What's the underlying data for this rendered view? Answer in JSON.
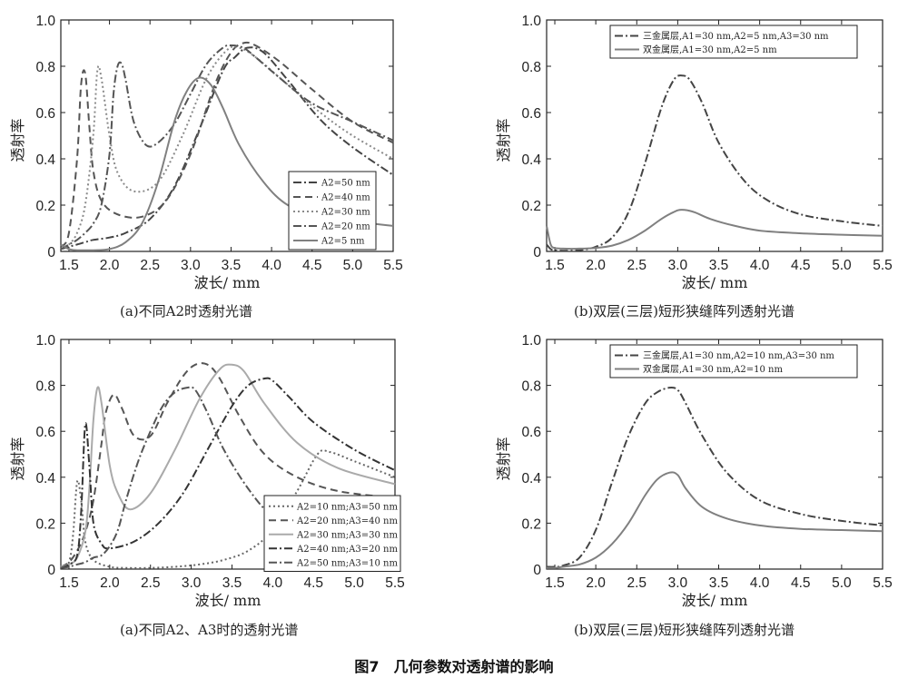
{
  "figure_title": "图7　几何参数对透射谱的影响",
  "chart_data": [
    {
      "type": "line",
      "caption": "(a)不同A2时透射光谱",
      "xlabel": "波长/ mm",
      "ylabel": "透射率",
      "xlim": [
        1.4,
        5.5
      ],
      "ylim": [
        0,
        1.0
      ],
      "xticks": [
        "1.5",
        "2.0",
        "2.5",
        "3.0",
        "3.5",
        "4.0",
        "4.5",
        "5.0",
        "5.5"
      ],
      "yticks": [
        "0",
        "0.2",
        "0.4",
        "0.6",
        "0.8",
        "1.0"
      ],
      "legend_position": "right-middle",
      "series": [
        {
          "name": "A2=50 nm",
          "style": "dashdot",
          "color": "#444444",
          "x": [
            1.4,
            1.5,
            1.6,
            1.7,
            1.8,
            2.0,
            2.2,
            2.5,
            2.8,
            3.1,
            3.4,
            3.55,
            3.7,
            3.9,
            4.2,
            4.6,
            5.0,
            5.5
          ],
          "y": [
            0.01,
            0.02,
            0.03,
            0.04,
            0.05,
            0.06,
            0.08,
            0.14,
            0.28,
            0.52,
            0.78,
            0.84,
            0.88,
            0.86,
            0.74,
            0.57,
            0.45,
            0.33
          ]
        },
        {
          "name": "A2=40 nm",
          "style": "dashed",
          "color": "#555555",
          "x": [
            1.4,
            1.5,
            1.6,
            1.65,
            1.7,
            1.75,
            1.8,
            1.9,
            2.1,
            2.4,
            2.7,
            3.0,
            3.3,
            3.5,
            3.65,
            3.8,
            4.1,
            4.5,
            5.0,
            5.5
          ],
          "y": [
            0.02,
            0.08,
            0.4,
            0.72,
            0.77,
            0.55,
            0.35,
            0.22,
            0.16,
            0.15,
            0.22,
            0.42,
            0.72,
            0.86,
            0.9,
            0.89,
            0.82,
            0.7,
            0.56,
            0.47
          ]
        },
        {
          "name": "A2=30 nm",
          "style": "dotted",
          "color": "#8a8a8a",
          "x": [
            1.4,
            1.5,
            1.6,
            1.7,
            1.8,
            1.85,
            1.9,
            2.0,
            2.1,
            2.3,
            2.6,
            2.9,
            3.2,
            3.45,
            3.6,
            3.8,
            4.2,
            4.6,
            5.0,
            5.5
          ],
          "y": [
            0.01,
            0.03,
            0.08,
            0.2,
            0.5,
            0.78,
            0.75,
            0.5,
            0.34,
            0.26,
            0.3,
            0.5,
            0.75,
            0.87,
            0.88,
            0.84,
            0.72,
            0.6,
            0.5,
            0.4
          ]
        },
        {
          "name": "A2=20 nm",
          "style": "dashdot",
          "color": "#555555",
          "x": [
            1.4,
            1.5,
            1.6,
            1.7,
            1.8,
            1.9,
            2.0,
            2.05,
            2.1,
            2.15,
            2.2,
            2.3,
            2.45,
            2.6,
            2.8,
            3.0,
            3.2,
            3.4,
            3.5,
            3.65,
            3.8,
            4.1,
            4.5,
            5.0,
            5.5
          ],
          "y": [
            0.01,
            0.03,
            0.05,
            0.08,
            0.12,
            0.2,
            0.42,
            0.68,
            0.8,
            0.81,
            0.74,
            0.56,
            0.46,
            0.47,
            0.55,
            0.68,
            0.81,
            0.88,
            0.89,
            0.88,
            0.84,
            0.75,
            0.64,
            0.56,
            0.48
          ]
        },
        {
          "name": "A2=5 nm",
          "style": "solid",
          "color": "#808080",
          "x": [
            1.4,
            1.5,
            1.6,
            1.7,
            1.8,
            2.0,
            2.2,
            2.4,
            2.6,
            2.8,
            2.95,
            3.1,
            3.25,
            3.4,
            3.6,
            3.9,
            4.2,
            4.6,
            5.0,
            5.5
          ],
          "y": [
            0.03,
            0.01,
            0.005,
            0.005,
            0.005,
            0.01,
            0.04,
            0.12,
            0.3,
            0.56,
            0.69,
            0.75,
            0.72,
            0.62,
            0.46,
            0.3,
            0.2,
            0.15,
            0.13,
            0.11
          ]
        }
      ]
    },
    {
      "type": "line",
      "caption": "(b)双层(三层)短形狭缝阵列透射光谱",
      "xlabel": "波长/ mm",
      "ylabel": "透射率",
      "xlim": [
        1.4,
        5.5
      ],
      "ylim": [
        0,
        1.0
      ],
      "xticks": [
        "1.5",
        "2.0",
        "2.5",
        "3.0",
        "3.5",
        "4.0",
        "4.5",
        "5.0",
        "5.5"
      ],
      "yticks": [
        "0",
        "0.2",
        "0.4",
        "0.6",
        "0.8",
        "1.0"
      ],
      "legend_position": "top",
      "series": [
        {
          "name": "三金属层,A1=30 nm,A2=5 nm,A3=30 nm",
          "style": "dashdot",
          "color": "#444444",
          "x": [
            1.4,
            1.45,
            1.5,
            1.6,
            1.8,
            2.0,
            2.2,
            2.4,
            2.6,
            2.8,
            2.95,
            3.05,
            3.15,
            3.3,
            3.5,
            3.8,
            4.1,
            4.5,
            5.0,
            5.5
          ],
          "y": [
            0.03,
            0.01,
            0.005,
            0.003,
            0.005,
            0.02,
            0.06,
            0.17,
            0.38,
            0.62,
            0.74,
            0.76,
            0.74,
            0.64,
            0.47,
            0.31,
            0.22,
            0.16,
            0.13,
            0.11
          ]
        },
        {
          "name": "双金属层,A1=30 nm,A2=5 nm",
          "style": "solid",
          "color": "#808080",
          "x": [
            1.4,
            1.45,
            1.5,
            1.6,
            1.8,
            2.0,
            2.2,
            2.4,
            2.6,
            2.8,
            2.95,
            3.05,
            3.2,
            3.4,
            3.7,
            4.0,
            4.4,
            5.0,
            5.5
          ],
          "y": [
            0.11,
            0.03,
            0.015,
            0.012,
            0.012,
            0.015,
            0.025,
            0.05,
            0.09,
            0.14,
            0.17,
            0.18,
            0.17,
            0.14,
            0.11,
            0.09,
            0.08,
            0.072,
            0.068
          ]
        }
      ]
    },
    {
      "type": "line",
      "caption": "(a)不同A2、A3时的透射光谱",
      "xlabel": "波长/ mm",
      "ylabel": "透射率",
      "xlim": [
        1.4,
        5.5
      ],
      "ylim": [
        0,
        1.0
      ],
      "xticks": [
        "1.5",
        "2.0",
        "2.5",
        "3.0",
        "3.5",
        "4.0",
        "4.5",
        "5.0",
        "5.5"
      ],
      "yticks": [
        "0",
        "0.2",
        "0.4",
        "0.6",
        "0.8",
        "1.0"
      ],
      "legend_position": "bottom-right",
      "series": [
        {
          "name": "A2=10 nm;A3=50 nm",
          "style": "dotted",
          "color": "#666666",
          "x": [
            1.4,
            1.5,
            1.55,
            1.6,
            1.65,
            1.7,
            1.8,
            2.0,
            2.2,
            2.5,
            2.8,
            3.1,
            3.4,
            3.7,
            4.0,
            4.3,
            4.55,
            4.7,
            5.0,
            5.5
          ],
          "y": [
            0.005,
            0.03,
            0.15,
            0.38,
            0.3,
            0.12,
            0.04,
            0.01,
            0.005,
            0.005,
            0.01,
            0.02,
            0.04,
            0.08,
            0.17,
            0.34,
            0.5,
            0.51,
            0.47,
            0.4
          ]
        },
        {
          "name": "A2=20 nm;A3=40 nm",
          "style": "dashed",
          "color": "#555555",
          "x": [
            1.4,
            1.5,
            1.6,
            1.7,
            1.8,
            1.9,
            1.95,
            2.05,
            2.15,
            2.3,
            2.5,
            2.7,
            2.9,
            3.05,
            3.2,
            3.35,
            3.6,
            3.9,
            4.3,
            4.8,
            5.5
          ],
          "y": [
            0.01,
            0.03,
            0.08,
            0.16,
            0.3,
            0.55,
            0.68,
            0.76,
            0.7,
            0.58,
            0.58,
            0.72,
            0.84,
            0.89,
            0.89,
            0.83,
            0.66,
            0.5,
            0.4,
            0.34,
            0.31
          ]
        },
        {
          "name": "A2=30 nm;A3=30 nm",
          "style": "solid",
          "color": "#aaaaaa",
          "x": [
            1.4,
            1.5,
            1.6,
            1.7,
            1.75,
            1.8,
            1.85,
            1.9,
            2.0,
            2.1,
            2.25,
            2.5,
            2.8,
            3.1,
            3.35,
            3.5,
            3.65,
            3.9,
            4.3,
            4.8,
            5.5
          ],
          "y": [
            0.01,
            0.02,
            0.05,
            0.16,
            0.35,
            0.65,
            0.79,
            0.72,
            0.45,
            0.33,
            0.26,
            0.33,
            0.52,
            0.74,
            0.87,
            0.89,
            0.86,
            0.72,
            0.55,
            0.44,
            0.37
          ]
        },
        {
          "name": "A2=40 nm;A3=20 nm",
          "style": "dashdot",
          "color": "#333333",
          "x": [
            1.4,
            1.5,
            1.6,
            1.65,
            1.7,
            1.75,
            1.8,
            1.9,
            2.0,
            2.3,
            2.6,
            2.9,
            3.2,
            3.5,
            3.7,
            3.9,
            4.0,
            4.2,
            4.5,
            5.0,
            5.5
          ],
          "y": [
            0.005,
            0.02,
            0.06,
            0.25,
            0.63,
            0.45,
            0.2,
            0.11,
            0.09,
            0.12,
            0.2,
            0.33,
            0.52,
            0.71,
            0.8,
            0.83,
            0.82,
            0.75,
            0.64,
            0.52,
            0.43
          ]
        },
        {
          "name": "A2=50 nm;A3=10 nm",
          "style": "dashdot",
          "color": "#555555",
          "x": [
            1.4,
            1.5,
            1.6,
            1.7,
            1.8,
            1.9,
            2.0,
            2.1,
            2.2,
            2.35,
            2.5,
            2.65,
            2.8,
            2.95,
            3.05,
            3.2,
            3.4,
            3.7,
            4.0,
            4.5,
            5.0,
            5.5
          ],
          "y": [
            0.005,
            0.01,
            0.02,
            0.03,
            0.05,
            0.06,
            0.1,
            0.17,
            0.3,
            0.47,
            0.6,
            0.71,
            0.77,
            0.79,
            0.78,
            0.68,
            0.52,
            0.35,
            0.23,
            0.13,
            0.08,
            0.05
          ]
        }
      ]
    },
    {
      "type": "line",
      "caption": "(b)双层(三层)短形狭缝阵列透射光谱",
      "xlabel": "波长/ mm",
      "ylabel": "透射率",
      "xlim": [
        1.4,
        5.5
      ],
      "ylim": [
        0,
        1.0
      ],
      "xticks": [
        "1.5",
        "2.0",
        "2.5",
        "3.0",
        "3.5",
        "4.0",
        "4.5",
        "5.0",
        "5.5"
      ],
      "yticks": [
        "0",
        "0.2",
        "0.4",
        "0.6",
        "0.8",
        "1.0"
      ],
      "legend_position": "top",
      "series": [
        {
          "name": "三金属层,A1=30 nm,A2=10 nm,A3=30 nm",
          "style": "dashdot",
          "color": "#444444",
          "x": [
            1.4,
            1.5,
            1.6,
            1.8,
            2.0,
            2.2,
            2.4,
            2.6,
            2.75,
            2.9,
            3.0,
            3.1,
            3.3,
            3.6,
            4.0,
            4.5,
            5.0,
            5.5
          ],
          "y": [
            0.01,
            0.01,
            0.015,
            0.05,
            0.17,
            0.38,
            0.58,
            0.72,
            0.77,
            0.79,
            0.78,
            0.72,
            0.58,
            0.42,
            0.3,
            0.24,
            0.21,
            0.19
          ]
        },
        {
          "name": "双金属层,A1=30 nm,A2=10 nm",
          "style": "solid",
          "color": "#808080",
          "x": [
            1.4,
            1.5,
            1.6,
            1.8,
            2.0,
            2.2,
            2.4,
            2.6,
            2.75,
            2.9,
            3.0,
            3.1,
            3.3,
            3.6,
            4.0,
            4.5,
            5.0,
            5.5
          ],
          "y": [
            0.005,
            0.005,
            0.01,
            0.02,
            0.05,
            0.11,
            0.2,
            0.32,
            0.39,
            0.42,
            0.41,
            0.35,
            0.27,
            0.22,
            0.19,
            0.175,
            0.17,
            0.165
          ]
        }
      ]
    }
  ]
}
